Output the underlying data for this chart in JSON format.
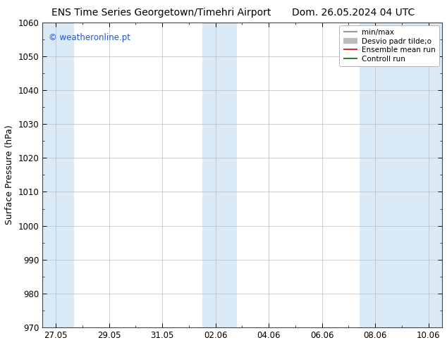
{
  "title_left": "ENS Time Series Georgetown/Timehri Airport",
  "title_right": "Dom. 26.05.2024 04 UTC",
  "ylabel": "Surface Pressure (hPa)",
  "ylim": [
    970,
    1060
  ],
  "yticks": [
    970,
    980,
    990,
    1000,
    1010,
    1020,
    1030,
    1040,
    1050,
    1060
  ],
  "xtick_labels": [
    "27.05",
    "29.05",
    "31.05",
    "02.06",
    "04.06",
    "06.06",
    "08.06",
    "10.06"
  ],
  "xtick_values": [
    0,
    2,
    4,
    6,
    8,
    10,
    12,
    14
  ],
  "xlim": [
    -0.5,
    14.5
  ],
  "watermark": "© weatheronline.pt",
  "watermark_color": "#2255cc",
  "bg_color": "#ffffff",
  "plot_bg_color": "#ffffff",
  "shaded_color": "#daeaf7",
  "shaded_bands": [
    {
      "xstart": -0.5,
      "xend": 0.7
    },
    {
      "xstart": 5.5,
      "xend": 6.8
    },
    {
      "xstart": 11.4,
      "xend": 14.5
    }
  ],
  "legend_entries": [
    {
      "label": "min/max",
      "color": "#999999",
      "lw": 1.5,
      "style": "solid"
    },
    {
      "label": "Desvio padr tilde;o",
      "color": "#bbbbbb",
      "lw": 6,
      "style": "solid"
    },
    {
      "label": "Ensemble mean run",
      "color": "#dd0000",
      "lw": 1.2,
      "style": "solid"
    },
    {
      "label": "Controll run",
      "color": "#006600",
      "lw": 1.2,
      "style": "solid"
    }
  ],
  "grid_color": "#bbbbbb",
  "spine_color": "#444444",
  "title_fontsize": 10,
  "ylabel_fontsize": 9,
  "tick_fontsize": 8.5,
  "watermark_fontsize": 8.5,
  "legend_fontsize": 7.5
}
